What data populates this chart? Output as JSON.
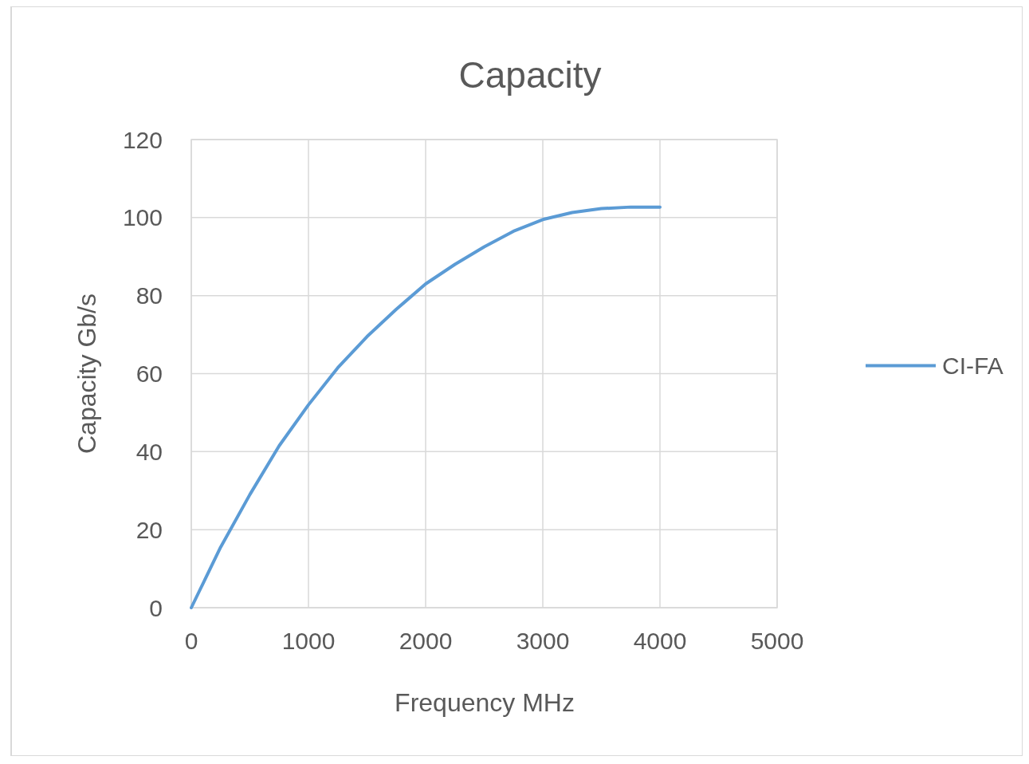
{
  "chart_data": {
    "type": "line",
    "title": "Capacity",
    "xlabel": "Frequency MHz",
    "ylabel": "Capacity Gb/s",
    "x": [
      0,
      250,
      500,
      750,
      1000,
      1250,
      1500,
      1750,
      2000,
      2250,
      2500,
      2750,
      3000,
      3250,
      3500,
      3750,
      4000
    ],
    "series": [
      {
        "name": "CI-FA",
        "color": "#5b9bd5",
        "values": [
          0,
          15.5,
          29,
          41.5,
          52,
          61.5,
          69.5,
          76.5,
          83,
          88,
          92.5,
          96.5,
          99.5,
          101.3,
          102.3,
          102.7,
          102.7
        ]
      }
    ],
    "xlim": [
      0,
      5000
    ],
    "xticks": [
      0,
      1000,
      2000,
      3000,
      4000,
      5000
    ],
    "ylim": [
      0,
      120
    ],
    "yticks": [
      0,
      20,
      40,
      60,
      80,
      100,
      120
    ],
    "grid": true,
    "legend": "right",
    "marker": "none",
    "line_style": "solid"
  }
}
